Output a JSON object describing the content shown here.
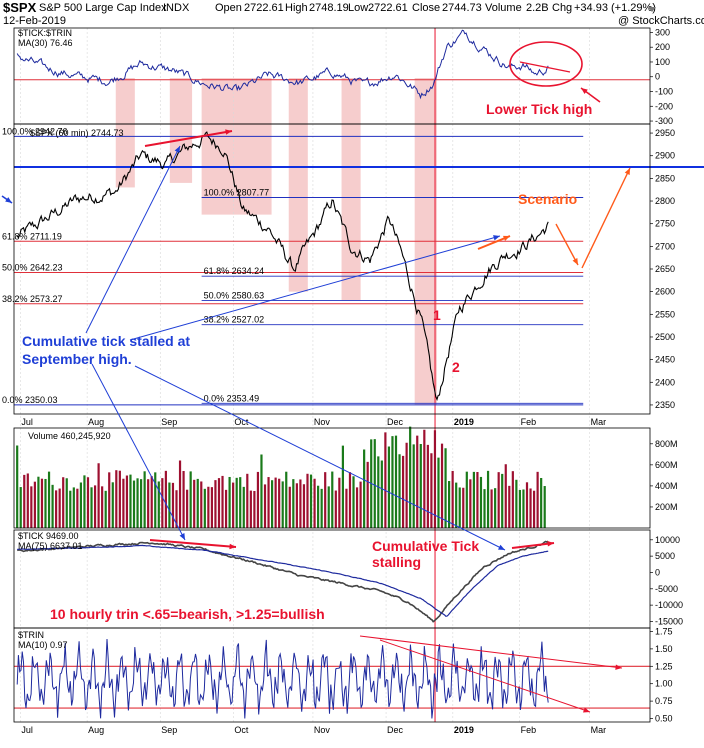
{
  "header": {
    "symbol": "$SPX",
    "name": "S&P 500 Large Cap Index",
    "exchange": "INDX",
    "date": "12-Feb-2019",
    "open_label": "Open",
    "open": "2722.61",
    "high_label": "High",
    "high": "2748.19",
    "low_label": "Low",
    "low": "2722.61",
    "close_label": "Close",
    "close": "2744.73",
    "volume_label": "Volume",
    "volume": "2.2B",
    "chg_label": "Chg",
    "chg": "+34.93 (+1.29%)",
    "watermark": "@ StockCharts.com"
  },
  "colors": {
    "price": "#000000",
    "ma": "#1e2a9e",
    "volume_up": "#1a7a1a",
    "volume_down": "#9e1030",
    "annotation_red": "#e8132f",
    "annotation_blue": "#1f3fd6",
    "annotation_orange": "#ff5a1a",
    "shade": "#f2b8b8",
    "level_line_red": "#e0303a",
    "level_line_blue": "#2030c0"
  },
  "x_axis": {
    "months": [
      "Jul",
      "Aug",
      "Sep",
      "Oct",
      "Nov",
      "Dec",
      "2019",
      "Feb",
      "Mar"
    ]
  },
  "panels": {
    "trin_top": {
      "legend_symbol": "$TICK:$TRIN",
      "legend_ma": "MA(30) 76.46",
      "ticks": [
        "300",
        "200",
        "100",
        "0",
        "-100",
        "-200",
        "-300"
      ]
    },
    "price": {
      "legend_symbol": "$SPX (60 min) 2744.73",
      "ticks": [
        "2950",
        "2900",
        "2850",
        "2800",
        "2750",
        "2700",
        "2650",
        "2600",
        "2550",
        "2500",
        "2450",
        "2400",
        "2350"
      ],
      "levels_left": [
        {
          "label": "100.0% 2942.76",
          "value": 2942.76
        },
        {
          "label": "61.8% 2711.19",
          "value": 2711.19
        },
        {
          "label": "50.0% 2642.23",
          "value": 2642.23
        },
        {
          "label": "38.2% 2573.27",
          "value": 2573.27
        },
        {
          "label": "0.0% 2350.03",
          "value": 2350.03
        }
      ],
      "levels_right": [
        {
          "label": "100.0% 2807.77",
          "value": 2807.77
        },
        {
          "label": "61.8% 2634.24",
          "value": 2634.24
        },
        {
          "label": "50.0% 2580.63",
          "value": 2580.63
        },
        {
          "label": "38.2% 2527.02",
          "value": 2527.02
        },
        {
          "label": "0.0% 2353.49",
          "value": 2353.49
        }
      ],
      "blue_horizontal": 2875
    },
    "volume": {
      "legend": "Volume 460,245,920",
      "ticks": [
        "800M",
        "600M",
        "400M",
        "200M"
      ]
    },
    "tick": {
      "legend_symbol": "$TICK 9469.00",
      "legend_ma": "MA(75) 6637.01",
      "ticks": [
        "10000",
        "5000",
        "0",
        "-5000",
        "-10000",
        "-15000"
      ]
    },
    "trin": {
      "legend_symbol": "$TRIN",
      "legend_ma": "MA(10) 0.97",
      "ticks": [
        "1.75",
        "1.50",
        "1.25",
        "1.00",
        "0.75",
        "0.50"
      ]
    }
  },
  "annotations": {
    "lower_tick_high": "Lower Tick high",
    "scenario": "Scenario",
    "cum_tick_stalled_1": "Cumulative tick stalled at",
    "cum_tick_stalled_2": "September high.",
    "wave1": "1",
    "wave2": "2",
    "cum_tick_stalling_1": "Cumulative Tick",
    "cum_tick_stalling_2": "stalling",
    "trin_note": "10 hourly trin <.65=bearish, >1.25=bullish"
  },
  "chart_data": {
    "type": "line",
    "x": [
      "Jul",
      "Aug",
      "Sep",
      "Oct",
      "Nov",
      "Dec",
      "2019",
      "Feb",
      "Mar"
    ],
    "series": [
      {
        "name": "$SPX (60 min)",
        "values": [
          2720,
          2810,
          2900,
          2925,
          2740,
          2700,
          2440,
          2700,
          2744.73
        ]
      },
      {
        "name": "$TICK",
        "values": [
          7000,
          8000,
          8800,
          6000,
          -2000,
          -4000,
          -15000,
          5000,
          9469
        ]
      },
      {
        "name": "$TRIN",
        "values": [
          1.05,
          0.95,
          1.1,
          0.9,
          1.15,
          1.05,
          1.2,
          1.0,
          0.97
        ]
      }
    ],
    "ylim_price": [
      2330,
      2970
    ],
    "ylim_tick": [
      -17000,
      13000
    ],
    "ylim_trin": [
      0.45,
      1.8
    ],
    "ylim_trin_top": [
      -320,
      330
    ]
  }
}
